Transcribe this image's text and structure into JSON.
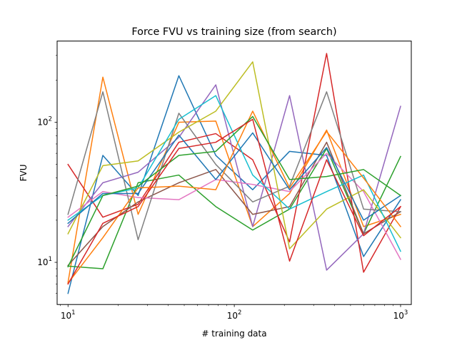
{
  "chart_data": {
    "type": "line",
    "title": "Force FVU vs training size (from search)",
    "xlabel": "# training data",
    "ylabel": "FVU",
    "xscale": "log",
    "yscale": "log",
    "xlim": [
      8.6,
      1160
    ],
    "ylim": [
      5.0,
      380
    ],
    "grid": false,
    "x": [
      10,
      16.2,
      26.4,
      46.4,
      77.4,
      129,
      215,
      359,
      599,
      1000
    ],
    "xticks": [
      {
        "value": 10,
        "base": "10",
        "exp": "1"
      },
      {
        "value": 100,
        "base": "10",
        "exp": "2"
      },
      {
        "value": 1000,
        "base": "10",
        "exp": "3"
      }
    ],
    "yticks": [
      {
        "value": 10,
        "base": "10",
        "exp": "1"
      },
      {
        "value": 100,
        "base": "10",
        "exp": "2"
      }
    ],
    "series": [
      {
        "color": "#1f77b4",
        "values": [
          6.0,
          58,
          30,
          215,
          58,
          33,
          62,
          58,
          11,
          28
        ]
      },
      {
        "color": "#ff7f0e",
        "values": [
          7.2,
          210,
          22,
          100,
          102,
          18,
          31,
          88,
          18,
          22
        ]
      },
      {
        "color": "#2ca02c",
        "values": [
          9.4,
          9.0,
          37,
          42,
          25,
          17,
          24,
          65,
          16,
          57
        ]
      },
      {
        "color": "#d62728",
        "values": [
          50,
          21,
          26,
          72,
          83,
          54,
          14,
          310,
          8.5,
          25
        ]
      },
      {
        "color": "#9467bd",
        "values": [
          18,
          37,
          44,
          78,
          185,
          18,
          155,
          8.8,
          16,
          130
        ]
      },
      {
        "color": "#8c564b",
        "values": [
          9.5,
          18,
          27,
          37,
          46,
          22,
          25,
          72,
          16,
          23
        ]
      },
      {
        "color": "#e377c2",
        "values": [
          21,
          32,
          29,
          28,
          39,
          36,
          32,
          60,
          32,
          10.5
        ]
      },
      {
        "color": "#7f7f7f",
        "values": [
          22,
          165,
          14.5,
          116,
          50,
          27,
          35,
          165,
          24,
          23
        ]
      },
      {
        "color": "#bcbd22",
        "values": [
          16,
          49,
          53,
          85,
          120,
          270,
          12.5,
          24,
          33,
          15
        ]
      },
      {
        "color": "#17becf",
        "values": [
          20,
          30,
          34,
          105,
          155,
          42,
          24,
          32,
          42,
          12
        ]
      },
      {
        "color": "#1f77b4",
        "values": [
          19,
          31,
          31,
          81,
          39,
          84,
          33,
          66,
          20,
          30
        ]
      },
      {
        "color": "#ff7f0e",
        "values": [
          7.1,
          15,
          34,
          35,
          33,
          120,
          34,
          86,
          40,
          18
        ]
      },
      {
        "color": "#2ca02c",
        "values": [
          9.3,
          30,
          35,
          58,
          62,
          110,
          39,
          41,
          46,
          30
        ]
      },
      {
        "color": "#d62728",
        "values": [
          7.0,
          19,
          25,
          65,
          72,
          105,
          10.2,
          54,
          15.5,
          25
        ]
      }
    ]
  }
}
